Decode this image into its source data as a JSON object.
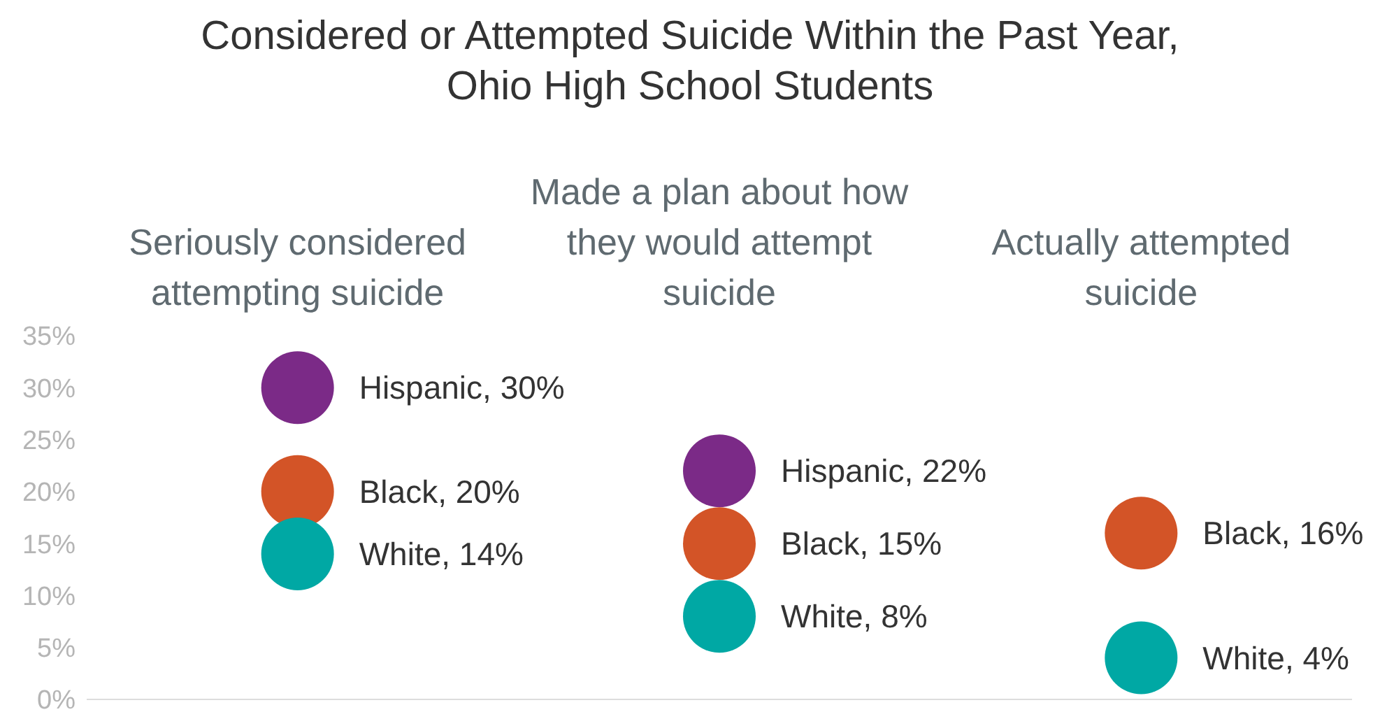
{
  "chart_data": {
    "type": "scatter",
    "title": "Considered or Attempted Suicide Within the Past Year,\nOhio High School Students",
    "categories": [
      "Seriously considered attempting suicide",
      "Made a plan about how they would attempt suicide",
      "Actually attempted suicide"
    ],
    "series": [
      {
        "name": "Hispanic",
        "color": "#7b2a87",
        "values": [
          30,
          22,
          null
        ],
        "value_labels": [
          ", 30%",
          ", 22%",
          null
        ]
      },
      {
        "name": "Black",
        "color": "#d35427",
        "values": [
          20,
          15,
          16
        ],
        "value_labels": [
          ", 20%",
          ", 15%",
          ", 16%"
        ]
      },
      {
        "name": "White",
        "color": "#00a8a4",
        "values": [
          14,
          8,
          4
        ],
        "value_labels": [
          ", 14%",
          ", 8%",
          ", 4%"
        ]
      }
    ],
    "ylim": [
      0,
      35
    ],
    "yticks": [
      {
        "value": 0,
        "label": "0%"
      },
      {
        "value": 5,
        "label": "5%"
      },
      {
        "value": 10,
        "label": "10%"
      },
      {
        "value": 15,
        "label": "15%"
      },
      {
        "value": 20,
        "label": "20%"
      },
      {
        "value": 25,
        "label": "25%"
      },
      {
        "value": 30,
        "label": "30%"
      },
      {
        "value": 35,
        "label": "35%"
      }
    ],
    "marker": "circle"
  }
}
